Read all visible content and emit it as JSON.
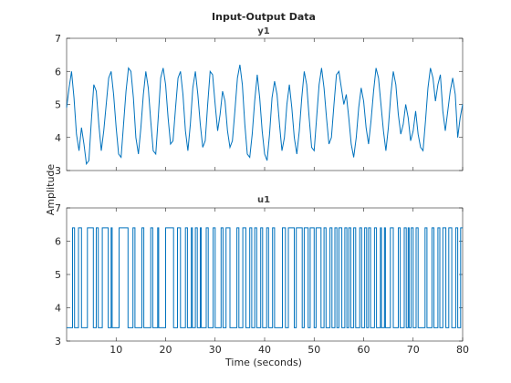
{
  "chart_data": {
    "type": "line",
    "title": "Input-Output Data",
    "xlabel": "Time (seconds)",
    "ylabel": "Amplitude",
    "xlim": [
      0,
      80
    ],
    "xticks": [
      10,
      20,
      30,
      40,
      50,
      60,
      70,
      80
    ],
    "grid": false,
    "axes": [
      {
        "name": "y1",
        "ylim": [
          3,
          7
        ],
        "yticks": [
          3,
          4,
          5,
          6,
          7
        ],
        "series_color": "#0072bd",
        "x": [
          0.0,
          0.5,
          1.0,
          1.5,
          2.0,
          2.5,
          3.0,
          3.5,
          4.0,
          4.5,
          5.0,
          5.5,
          6.0,
          6.5,
          7.0,
          7.5,
          8.0,
          8.5,
          9.0,
          9.5,
          10.0,
          10.5,
          11.0,
          11.5,
          12.0,
          12.5,
          13.0,
          13.5,
          14.0,
          14.5,
          15.0,
          15.5,
          16.0,
          16.5,
          17.0,
          17.5,
          18.0,
          18.5,
          19.0,
          19.5,
          20.0,
          20.5,
          21.0,
          21.5,
          22.0,
          22.5,
          23.0,
          23.5,
          24.0,
          24.5,
          25.0,
          25.5,
          26.0,
          26.5,
          27.0,
          27.5,
          28.0,
          28.5,
          29.0,
          29.5,
          30.0,
          30.5,
          31.0,
          31.5,
          32.0,
          32.5,
          33.0,
          33.5,
          34.0,
          34.5,
          35.0,
          35.5,
          36.0,
          36.5,
          37.0,
          37.5,
          38.0,
          38.5,
          39.0,
          39.5,
          40.0,
          40.5,
          41.0,
          41.5,
          42.0,
          42.5,
          43.0,
          43.5,
          44.0,
          44.5,
          45.0,
          45.5,
          46.0,
          46.5,
          47.0,
          47.5,
          48.0,
          48.5,
          49.0,
          49.5,
          50.0,
          50.5,
          51.0,
          51.5,
          52.0,
          52.5,
          53.0,
          53.5,
          54.0,
          54.5,
          55.0,
          55.5,
          56.0,
          56.5,
          57.0,
          57.5,
          58.0,
          58.5,
          59.0,
          59.5,
          60.0,
          60.5,
          61.0,
          61.5,
          62.0,
          62.5,
          63.0,
          63.5,
          64.0,
          64.5,
          65.0,
          65.5,
          66.0,
          66.5,
          67.0,
          67.5,
          68.0,
          68.5,
          69.0,
          69.5,
          70.0,
          70.5,
          71.0,
          71.5,
          72.0,
          72.5,
          73.0,
          73.5,
          74.0,
          74.5,
          75.0,
          75.5,
          76.0,
          76.5,
          77.0,
          77.5,
          78.0,
          78.5,
          79.0,
          79.5,
          80.0
        ],
        "values": [
          4.9,
          5.5,
          6.0,
          5.2,
          4.1,
          3.6,
          4.3,
          3.8,
          3.2,
          3.3,
          4.5,
          5.6,
          5.4,
          4.4,
          3.6,
          4.2,
          5.0,
          5.8,
          6.0,
          5.3,
          4.3,
          3.5,
          3.4,
          4.4,
          5.4,
          6.1,
          6.0,
          5.2,
          4.0,
          3.5,
          4.3,
          5.3,
          6.0,
          5.5,
          4.5,
          3.6,
          3.5,
          4.6,
          5.8,
          6.1,
          5.6,
          4.6,
          3.8,
          3.9,
          4.9,
          5.8,
          6.0,
          5.3,
          4.2,
          3.6,
          4.4,
          5.5,
          6.0,
          5.3,
          4.4,
          3.7,
          3.9,
          5.0,
          6.0,
          5.9,
          5.0,
          4.2,
          4.7,
          5.4,
          5.1,
          4.2,
          3.7,
          3.9,
          4.8,
          5.8,
          6.2,
          5.6,
          4.4,
          3.5,
          3.4,
          4.1,
          5.1,
          5.9,
          5.2,
          4.2,
          3.5,
          3.3,
          4.1,
          5.2,
          5.7,
          5.3,
          4.4,
          3.6,
          4.0,
          5.0,
          5.6,
          4.9,
          4.0,
          3.5,
          4.2,
          5.2,
          6.0,
          5.6,
          4.6,
          3.7,
          3.6,
          4.6,
          5.6,
          6.1,
          5.5,
          4.6,
          3.8,
          4.0,
          5.0,
          5.9,
          6.0,
          5.5,
          5.0,
          5.3,
          4.6,
          3.8,
          3.4,
          4.0,
          4.9,
          5.5,
          5.1,
          4.3,
          3.8,
          4.5,
          5.4,
          6.1,
          5.8,
          5.0,
          4.2,
          3.6,
          4.3,
          5.3,
          6.0,
          5.6,
          4.7,
          4.1,
          4.4,
          5.0,
          4.6,
          3.9,
          4.2,
          4.8,
          4.1,
          3.7,
          3.6,
          4.5,
          5.5,
          6.1,
          5.8,
          5.1,
          5.6,
          5.9,
          4.8,
          4.2,
          4.8,
          5.4,
          5.8,
          5.3,
          4.0,
          4.6,
          5.0
        ]
      },
      {
        "name": "u1",
        "ylim": [
          3,
          7
        ],
        "yticks": [
          3,
          4,
          5,
          6,
          7
        ],
        "series_color": "#0072bd",
        "low": 3.4,
        "high": 6.4,
        "x_start": 0,
        "x_end": 80,
        "start_level": "low",
        "switch_times": [
          1.2,
          1.6,
          2.4,
          3.0,
          4.2,
          5.4,
          6.0,
          6.4,
          7.2,
          8.4,
          9.0,
          9.2,
          10.6,
          12.4,
          13.4,
          13.8,
          15.2,
          15.6,
          17.0,
          17.4,
          18.4,
          18.6,
          20.0,
          21.6,
          22.4,
          23.0,
          24.0,
          24.4,
          25.2,
          25.4,
          26.0,
          26.4,
          27.0,
          27.2,
          28.2,
          28.6,
          29.6,
          30.0,
          31.2,
          31.6,
          32.2,
          33.0,
          34.4,
          34.8,
          35.6,
          36.2,
          37.0,
          37.4,
          38.0,
          38.4,
          39.2,
          39.6,
          40.4,
          40.8,
          41.6,
          42.0,
          43.6,
          44.2,
          44.8,
          46.0,
          46.4,
          47.6,
          48.0,
          48.8,
          49.2,
          50.0,
          50.4,
          51.4,
          52.0,
          52.4,
          53.2,
          53.6,
          54.2,
          54.6,
          55.0,
          55.6,
          56.2,
          56.6,
          57.0,
          57.4,
          58.0,
          58.4,
          59.2,
          59.6,
          60.2,
          60.6,
          61.0,
          61.4,
          62.2,
          62.6,
          63.4,
          63.6,
          64.2,
          64.4,
          65.4,
          66.0,
          67.0,
          67.4,
          68.2,
          68.6,
          69.0,
          69.2,
          69.6,
          70.0,
          70.6,
          71.0,
          72.4,
          72.8,
          73.8,
          74.2,
          75.0,
          75.4,
          76.0,
          76.6,
          77.2,
          77.8,
          78.6,
          79.0,
          79.6
        ]
      }
    ]
  }
}
